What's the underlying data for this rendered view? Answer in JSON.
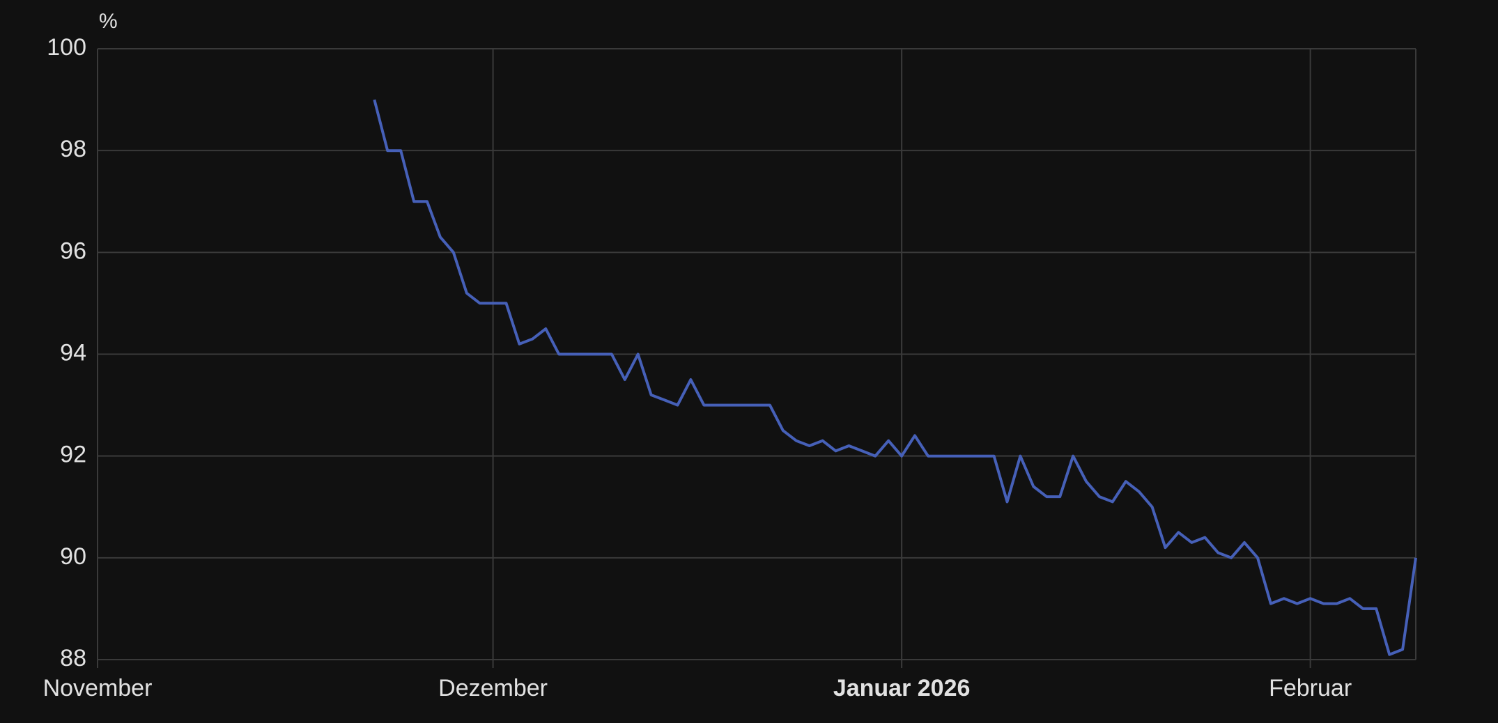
{
  "chart_data": {
    "type": "line",
    "y_unit": "%",
    "categories": [
      "November",
      null,
      null,
      null,
      null,
      null,
      null,
      null,
      null,
      null,
      null,
      null,
      null,
      null,
      null,
      null,
      null,
      null,
      null,
      null,
      null,
      null,
      null,
      null,
      null,
      null,
      null,
      null,
      null,
      null,
      "Dezember",
      null,
      null,
      null,
      null,
      null,
      null,
      null,
      null,
      null,
      null,
      null,
      null,
      null,
      null,
      null,
      null,
      null,
      null,
      null,
      null,
      null,
      null,
      null,
      null,
      null,
      null,
      null,
      null,
      null,
      null,
      "Januar 2026",
      null,
      null,
      null,
      null,
      null,
      null,
      null,
      null,
      null,
      null,
      null,
      null,
      null,
      null,
      null,
      null,
      null,
      null,
      null,
      null,
      null,
      null,
      null,
      null,
      null,
      null,
      null,
      null,
      null,
      null,
      "Februar",
      null,
      null,
      null,
      null,
      null,
      null,
      null,
      null
    ],
    "series": [
      {
        "color": "#4660b8",
        "values": [
          null,
          null,
          null,
          null,
          null,
          null,
          null,
          null,
          null,
          null,
          null,
          null,
          null,
          null,
          null,
          null,
          null,
          null,
          null,
          null,
          null,
          99,
          98,
          98,
          97,
          97,
          96.3,
          96,
          95.2,
          95,
          95,
          95,
          94.2,
          94.3,
          94.5,
          94,
          94,
          94,
          94,
          94,
          93.5,
          94,
          93.2,
          93.1,
          93,
          93.5,
          93,
          93,
          93,
          93,
          93,
          93,
          92.5,
          92.3,
          92.2,
          92.3,
          92.1,
          92.2,
          92.1,
          92,
          92.3,
          92,
          92.4,
          92,
          92,
          92,
          92,
          92,
          92,
          91.1,
          92,
          91.4,
          91.2,
          91.2,
          92,
          91.5,
          91.2,
          91.1,
          91.5,
          91.3,
          91,
          90.2,
          90.5,
          90.3,
          90.4,
          90.1,
          90,
          90.3,
          90,
          89.1,
          89.2,
          89.1,
          89.2,
          89.1,
          89.1,
          89.2,
          89,
          89,
          88.1,
          88.2,
          90
        ]
      }
    ],
    "ylim": [
      88,
      100
    ],
    "yticks": [
      88,
      90,
      92,
      94,
      96,
      98,
      100
    ],
    "grid": true
  }
}
